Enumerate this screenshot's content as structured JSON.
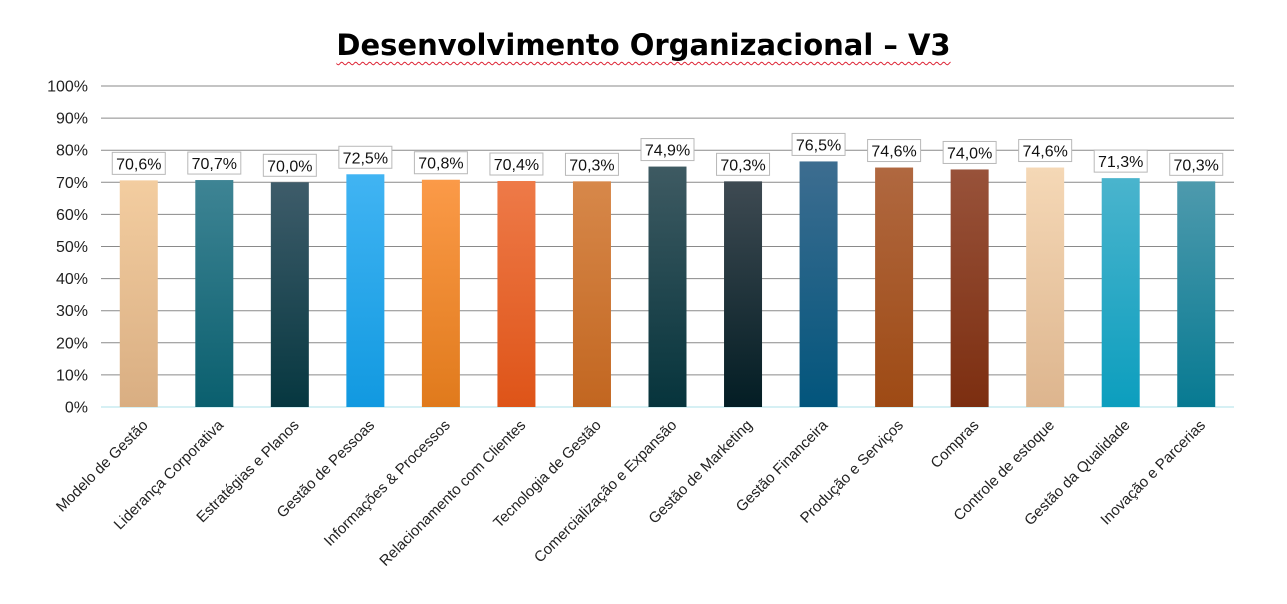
{
  "chart_data": {
    "type": "bar",
    "title": "Desenvolvimento Organizacional – V3",
    "xlabel": "",
    "ylabel": "",
    "ylim": [
      0,
      100
    ],
    "yticks": [
      "0%",
      "10%",
      "20%",
      "30%",
      "40%",
      "50%",
      "60%",
      "70%",
      "80%",
      "90%",
      "100%"
    ],
    "grid": true,
    "categories": [
      "Modelo de Gestão",
      "Liderança Corporativa",
      "Estratégias e Planos",
      "Gestão de Pessoas",
      "Informações & Processos",
      "Relacionamento com Clientes",
      "Tecnologia de Gestão",
      "Comercialização e Expansão",
      "Gestão de Marketing",
      "Gestão Financeira",
      "Produção e Serviços",
      "Compras",
      "Controle de estoque",
      "Gestão da Qualidade",
      "Inovação e Parcerias"
    ],
    "values": [
      70.6,
      70.7,
      70.0,
      72.5,
      70.8,
      70.4,
      70.3,
      74.9,
      70.3,
      76.5,
      74.6,
      74.0,
      74.6,
      71.3,
      70.3
    ],
    "data_labels": [
      "70,6%",
      "70,7%",
      "70,0%",
      "72,5%",
      "70,8%",
      "70,4%",
      "70,3%",
      "74,9%",
      "70,3%",
      "76,5%",
      "74,6%",
      "74,0%",
      "74,6%",
      "71,3%",
      "70,3%"
    ],
    "colors": [
      [
        "#f3cda0",
        "#d9ae82"
      ],
      [
        "#3e8494",
        "#0a5f6e"
      ],
      [
        "#3e5c6a",
        "#063740"
      ],
      [
        "#41b4f3",
        "#1199e0"
      ],
      [
        "#fb9a48",
        "#e07a1c"
      ],
      [
        "#ee7a48",
        "#de5418"
      ],
      [
        "#d7884a",
        "#c26620"
      ],
      [
        "#3e5a62",
        "#06343c"
      ],
      [
        "#3e4a52",
        "#031d24"
      ],
      [
        "#3d6d90",
        "#02557c"
      ],
      [
        "#b06840",
        "#9e4a14"
      ],
      [
        "#98523a",
        "#7c2e10"
      ],
      [
        "#f5d8b6",
        "#ddb58e"
      ],
      [
        "#4ab4cd",
        "#0c9ebe"
      ],
      [
        "#4e9aad",
        "#077a92"
      ]
    ]
  }
}
